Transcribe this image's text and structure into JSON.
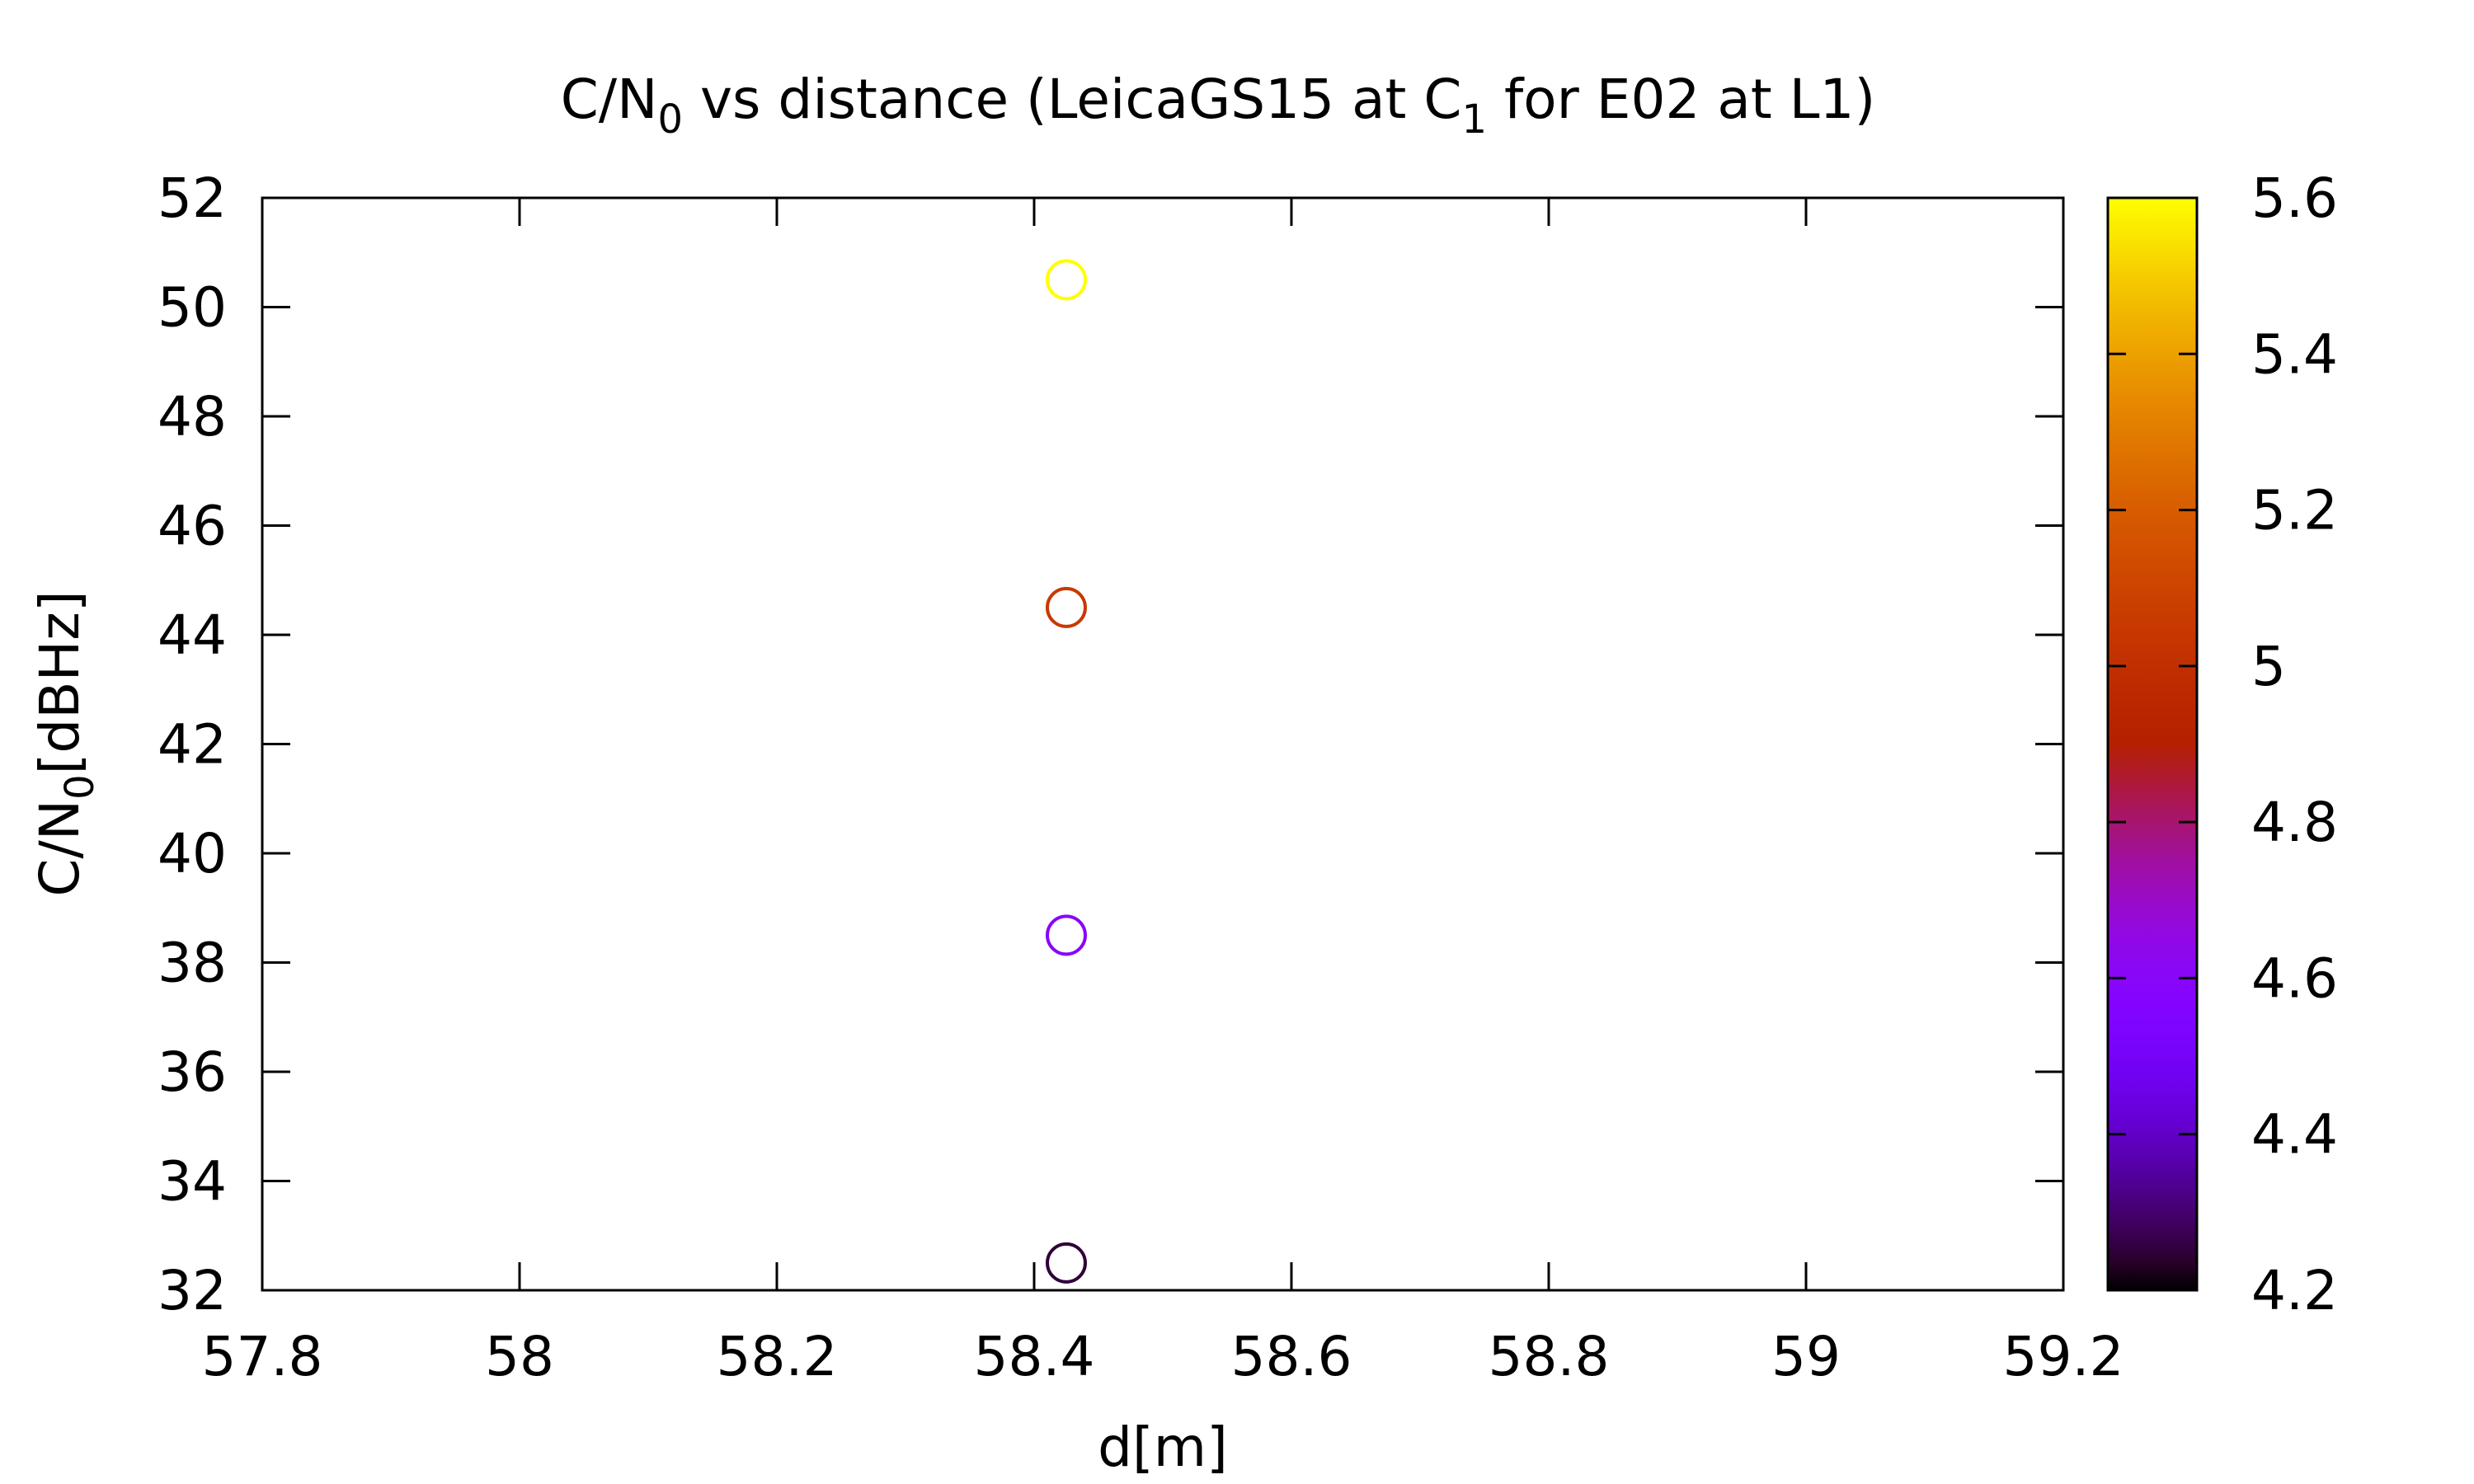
{
  "chart_data": {
    "type": "scatter",
    "title": {
      "prefix": "C/N",
      "prefix_sub": "0",
      "middle": " vs distance (LeicaGS15 at C",
      "middle_sub": "1",
      "suffix": " for E02 at L1)"
    },
    "xlabel": "d[m]",
    "ylabel": {
      "main": "C/N",
      "sub": "0",
      "rest": "[dBHz]"
    },
    "xlim": [
      57.8,
      59.2
    ],
    "ylim": [
      32,
      52
    ],
    "xticks": [
      57.8,
      58,
      58.2,
      58.4,
      58.6,
      58.8,
      59,
      59.2
    ],
    "xtick_labels": [
      "57.8",
      "58",
      "58.2",
      "58.4",
      "58.6",
      "58.8",
      "59",
      "59.2"
    ],
    "yticks": [
      32,
      34,
      36,
      38,
      40,
      42,
      44,
      46,
      48,
      50,
      52
    ],
    "ytick_labels": [
      "32",
      "34",
      "36",
      "38",
      "40",
      "42",
      "44",
      "46",
      "48",
      "50",
      "52"
    ],
    "marker": "open-circle",
    "points": [
      {
        "x": 58.425,
        "y": 32.5,
        "c": 4.25
      },
      {
        "x": 58.425,
        "y": 38.5,
        "c": 4.6
      },
      {
        "x": 58.425,
        "y": 44.5,
        "c": 5.05
      },
      {
        "x": 58.425,
        "y": 50.5,
        "c": 5.6
      }
    ],
    "colorbar": {
      "range": [
        4.2,
        5.6
      ],
      "ticks": [
        4.2,
        4.4,
        4.6,
        4.8,
        5.0,
        5.2,
        5.4,
        5.6
      ],
      "tick_labels": [
        "4.2",
        "4.4",
        "4.6",
        "4.8",
        "5",
        "5.2",
        "5.4",
        "5.6"
      ],
      "palette": "gnuplot pm3d default (black-blue-red-yellow)"
    },
    "grid": false,
    "legend": "none"
  }
}
